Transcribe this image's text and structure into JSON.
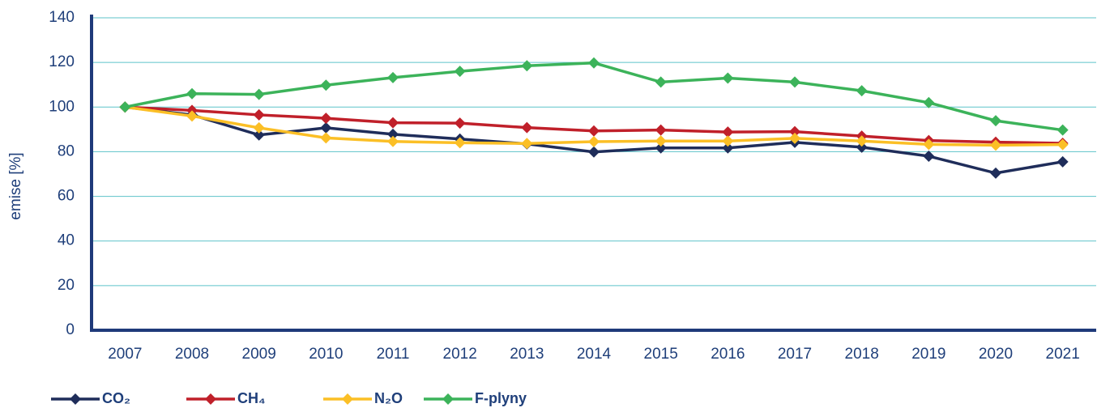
{
  "chart_data": {
    "type": "line",
    "y_label": "emise [%]",
    "categories": [
      "2007",
      "2008",
      "2009",
      "2010",
      "2011",
      "2012",
      "2013",
      "2014",
      "2015",
      "2016",
      "2017",
      "2018",
      "2019",
      "2020",
      "2021"
    ],
    "ylim": [
      0,
      140
    ],
    "yticks": [
      0,
      20,
      40,
      60,
      80,
      100,
      120,
      140
    ],
    "grid": true,
    "legend": "bottom",
    "series": [
      {
        "name": "CO₂",
        "color": "#1f2d5a",
        "values": [
          100,
          96.5,
          87.5,
          90.7,
          87.8,
          85.7,
          83.5,
          79.9,
          81.7,
          81.7,
          84.2,
          82,
          78,
          70.4,
          75.5
        ]
      },
      {
        "name": "CH₄",
        "color": "#c0202a",
        "values": [
          100,
          98.5,
          96.5,
          95,
          93,
          92.8,
          90.8,
          89.3,
          89.7,
          88.8,
          89,
          87,
          85,
          84.3,
          83.8
        ]
      },
      {
        "name": "N₂O",
        "color": "#fbbf26",
        "values": [
          100,
          96,
          90.7,
          86.2,
          84.6,
          84,
          83.7,
          84.5,
          84.8,
          84.8,
          86,
          84.8,
          83.3,
          82.9,
          83.2
        ]
      },
      {
        "name": "F-plyny",
        "color": "#3cb35a",
        "values": [
          100,
          106,
          105.7,
          109.8,
          113.2,
          116,
          118.5,
          119.8,
          111.2,
          113,
          111.2,
          107.3,
          102,
          93.9,
          89.7
        ]
      }
    ]
  }
}
